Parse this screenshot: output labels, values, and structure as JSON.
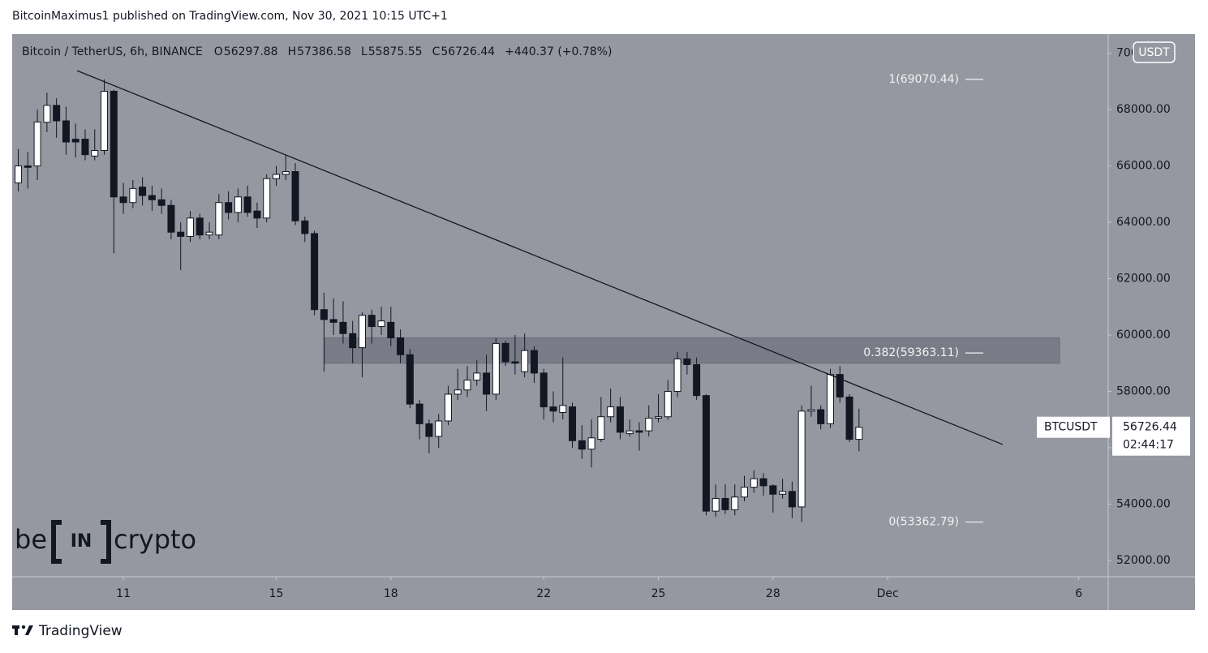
{
  "chart_data": {
    "type": "candlestick",
    "published": "BitcoinMaximus1 published on TradingView.com, Nov 30, 2021 10:15 UTC+1",
    "symbol": "Bitcoin / TetherUS, 6h, BINANCE",
    "ohlc": [
      {
        "key": "O",
        "value": 56297.88
      },
      {
        "key": "H",
        "value": 57386.58
      },
      {
        "key": "L",
        "value": 55875.55
      },
      {
        "key": "C",
        "value": 56726.44
      }
    ],
    "change": "+440.37 (+0.78%)",
    "currency": "USDT",
    "price_label": {
      "name": "BTCUSDT",
      "value": 56726.44,
      "countdown": "02:44:17"
    },
    "x": [
      8.25,
      8.5,
      8.75,
      9,
      9.25,
      9.5,
      9.75,
      10,
      10.25,
      10.5,
      10.75,
      11,
      11.25,
      11.5,
      11.75,
      12,
      12.25,
      12.5,
      12.75,
      13,
      13.25,
      13.5,
      13.75,
      14,
      14.25,
      14.5,
      14.75,
      15,
      15.25,
      15.5,
      15.75,
      16,
      16.25,
      16.5,
      16.75,
      17,
      17.25,
      17.5,
      17.75,
      18,
      18.25,
      18.5,
      18.75,
      19,
      19.25,
      19.5,
      19.75,
      20,
      20.25,
      20.5,
      20.75,
      21,
      21.25,
      21.5,
      21.75,
      22,
      22.25,
      22.5,
      22.75,
      23,
      23.25,
      23.5,
      23.75,
      24,
      24.25,
      24.5,
      24.75,
      25,
      25.25,
      25.5,
      25.75,
      26,
      26.25,
      26.5,
      26.75,
      27,
      27.25,
      27.5,
      27.75,
      28,
      28.25,
      28.5,
      28.75,
      29,
      29.25,
      29.5,
      29.75,
      30,
      30.25
    ],
    "open": [
      65400,
      66000,
      66000,
      67550,
      68150,
      67600,
      66950,
      66950,
      66350,
      66550,
      68650,
      64900,
      64700,
      65250,
      64950,
      64800,
      64600,
      63650,
      63500,
      64150,
      63550,
      63550,
      64700,
      64350,
      64900,
      64400,
      64150,
      65550,
      65700,
      65800,
      64050,
      63600,
      60900,
      60550,
      60450,
      60050,
      59550,
      60700,
      60300,
      60450,
      59900,
      59300,
      57550,
      56850,
      56400,
      56950,
      57900,
      58050,
      58400,
      58650,
      57900,
      59700,
      59050,
      58700,
      59450,
      58650,
      57450,
      57250,
      57450,
      56250,
      55950,
      56300,
      57100,
      57450,
      56500,
      56600,
      56600,
      57050,
      57100,
      58000,
      59150,
      58950,
      57850,
      53750,
      54200,
      53800,
      54250,
      54600,
      54900,
      54650,
      54350,
      54450,
      53900,
      57300,
      57350,
      56850,
      58600,
      57800,
      56297.88
    ],
    "high": [
      66600,
      66500,
      68000,
      68600,
      68400,
      68100,
      67500,
      67300,
      67300,
      69070.44,
      68700,
      65400,
      65500,
      65600,
      65300,
      65200,
      64800,
      64000,
      64400,
      64300,
      64000,
      65000,
      65100,
      65200,
      65300,
      64700,
      65700,
      66000,
      66400,
      66100,
      64200,
      63700,
      61500,
      61300,
      61200,
      60500,
      60800,
      60900,
      61000,
      61000,
      60200,
      59500,
      57700,
      57000,
      57200,
      58200,
      58800,
      58900,
      59100,
      59300,
      59900,
      59800,
      60000,
      60050,
      59600,
      58800,
      58000,
      59200,
      57600,
      56800,
      57000,
      57800,
      58100,
      57800,
      57000,
      56900,
      57500,
      57900,
      58400,
      59400,
      59400,
      59200,
      57900,
      54700,
      54700,
      54700,
      55000,
      55200,
      55100,
      54700,
      54900,
      54800,
      57500,
      58200,
      57500,
      58800,
      58900,
      57900,
      57386.58
    ],
    "low": [
      65100,
      65200,
      65500,
      67200,
      67000,
      66400,
      66300,
      66200,
      66200,
      66400,
      62900,
      64300,
      64500,
      64600,
      64400,
      64300,
      63400,
      62300,
      63300,
      63400,
      63400,
      63400,
      64100,
      64000,
      64200,
      63800,
      64000,
      65300,
      65500,
      63900,
      63300,
      60700,
      58700,
      60000,
      59700,
      59000,
      58500,
      59700,
      60000,
      59600,
      59000,
      57400,
      56300,
      55800,
      56000,
      56800,
      57700,
      57800,
      58200,
      57300,
      57700,
      58900,
      58600,
      58500,
      58300,
      57000,
      56900,
      57000,
      56000,
      55600,
      55300,
      56200,
      56900,
      56300,
      56400,
      55900,
      56400,
      56900,
      57000,
      57800,
      58600,
      57700,
      53600,
      53550,
      53650,
      53600,
      54100,
      54400,
      54300,
      53700,
      54200,
      53500,
      53362.79,
      57100,
      56650,
      56700,
      57600,
      56200,
      55875.55
    ],
    "close": [
      66000,
      65950,
      67560,
      68150,
      67600,
      66850,
      66850,
      66400,
      66550,
      68650,
      64900,
      64700,
      65200,
      64950,
      64800,
      64600,
      63650,
      63500,
      64150,
      63550,
      63650,
      64700,
      64350,
      64900,
      64350,
      64150,
      65550,
      65700,
      65800,
      64050,
      63600,
      60900,
      60550,
      60450,
      60050,
      59550,
      60700,
      60300,
      60500,
      59900,
      59300,
      57550,
      56850,
      56400,
      56950,
      57900,
      58050,
      58400,
      58650,
      57900,
      59700,
      59050,
      59000,
      59450,
      58650,
      57450,
      57300,
      57500,
      56250,
      55950,
      56350,
      57100,
      57450,
      56550,
      56600,
      56550,
      57050,
      57100,
      58000,
      59150,
      58950,
      57850,
      53750,
      54200,
      53800,
      54250,
      54600,
      54900,
      54650,
      54350,
      54450,
      53900,
      57300,
      57350,
      56850,
      58600,
      57800,
      56300,
      56726.44
    ],
    "up_color": "#ffffff",
    "down_color": "#131722",
    "wick_color": "#131722",
    "background": "#9598a1",
    "xlim": [
      8.09,
      36.75
    ],
    "ylim": [
      51450,
      70680
    ],
    "xticks": [
      11,
      15,
      18,
      22,
      25,
      28,
      {
        "value": 31,
        "label": "Dec"
      },
      {
        "value": 36,
        "label": "6"
      }
    ],
    "yticks": [
      {
        "value": 52000,
        "label": "52000.00"
      },
      {
        "value": 54000,
        "label": "54000.00"
      },
      {
        "value": 56000,
        "label": "56000.00"
      },
      {
        "value": 58000,
        "label": "58000.00"
      },
      {
        "value": 60000,
        "label": "60000.00"
      },
      {
        "value": 62000,
        "label": "62000.00"
      },
      {
        "value": 64000,
        "label": "64000.00"
      },
      {
        "value": 66000,
        "label": "66000.00"
      },
      {
        "value": 68000,
        "label": "68000.00"
      },
      {
        "value": 70000,
        "label": "70000.00"
      }
    ],
    "fib_levels": [
      {
        "value": 69070.44,
        "label": "1(69070.44)"
      },
      {
        "value": 59363.11,
        "label": "0.382(59363.11)"
      },
      {
        "value": 53362.79,
        "label": "0(53362.79)"
      }
    ],
    "trendline": {
      "x": [
        9.79,
        34.01
      ],
      "y": [
        69380,
        56115
      ]
    },
    "zone": {
      "x": [
        16.27,
        35.5
      ],
      "y": [
        59000,
        59900
      ]
    },
    "logo": {
      "left": "be",
      "middle": "IN",
      "right": "crypto"
    },
    "footer": "TradingView"
  }
}
